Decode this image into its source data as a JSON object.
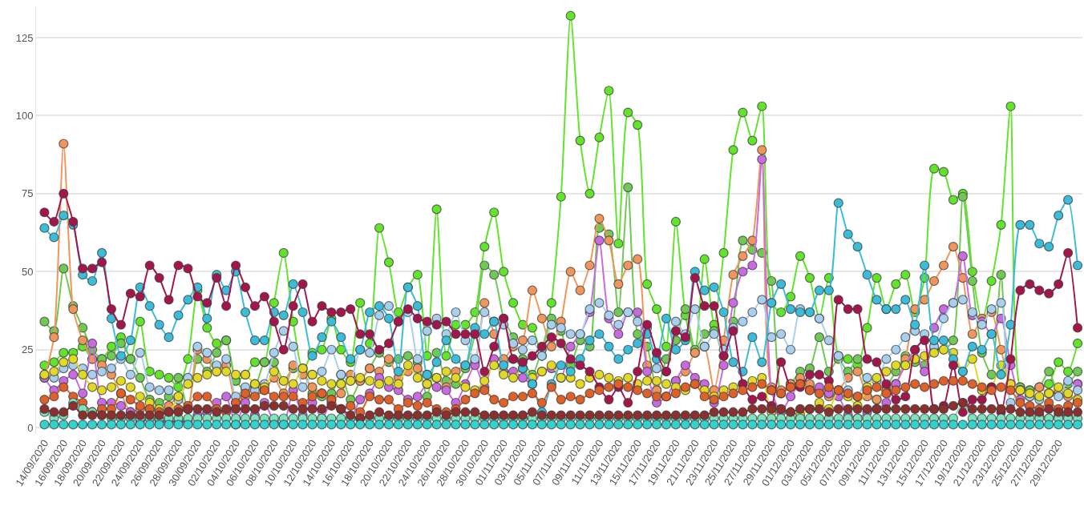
{
  "chart_data": {
    "type": "line",
    "marker": "circle",
    "line_style": "solid",
    "grid": "y",
    "x": [
      "2020-09-14",
      "2020-09-15",
      "2020-09-16",
      "2020-09-17",
      "2020-09-18",
      "2020-09-19",
      "2020-09-20",
      "2020-09-21",
      "2020-09-22",
      "2020-09-23",
      "2020-09-24",
      "2020-09-25",
      "2020-09-26",
      "2020-09-27",
      "2020-09-28",
      "2020-09-29",
      "2020-09-30",
      "2020-10-01",
      "2020-10-02",
      "2020-10-03",
      "2020-10-04",
      "2020-10-05",
      "2020-10-06",
      "2020-10-07",
      "2020-10-08",
      "2020-10-09",
      "2020-10-10",
      "2020-10-11",
      "2020-10-12",
      "2020-10-13",
      "2020-10-14",
      "2020-10-15",
      "2020-10-16",
      "2020-10-17",
      "2020-10-18",
      "2020-10-19",
      "2020-10-20",
      "2020-10-21",
      "2020-10-22",
      "2020-10-23",
      "2020-10-24",
      "2020-10-25",
      "2020-10-26",
      "2020-10-27",
      "2020-10-28",
      "2020-10-29",
      "2020-10-30",
      "2020-10-31",
      "2020-11-01",
      "2020-11-02",
      "2020-11-03",
      "2020-11-04",
      "2020-11-05",
      "2020-11-06",
      "2020-11-07",
      "2020-11-08",
      "2020-11-09",
      "2020-11-10",
      "2020-11-11",
      "2020-11-12",
      "2020-11-13",
      "2020-11-14",
      "2020-11-15",
      "2020-11-16",
      "2020-11-17",
      "2020-11-18",
      "2020-11-19",
      "2020-11-20",
      "2020-11-21",
      "2020-11-22",
      "2020-11-23",
      "2020-11-24",
      "2020-11-25",
      "2020-11-26",
      "2020-11-27",
      "2020-11-28",
      "2020-11-29",
      "2020-11-30",
      "2020-12-01",
      "2020-12-02",
      "2020-12-03",
      "2020-12-04",
      "2020-12-05",
      "2020-12-06",
      "2020-12-07",
      "2020-12-08",
      "2020-12-09",
      "2020-12-10",
      "2020-12-11",
      "2020-12-12",
      "2020-12-13",
      "2020-12-14",
      "2020-12-15",
      "2020-12-16",
      "2020-12-17",
      "2020-12-18",
      "2020-12-19",
      "2020-12-20",
      "2020-12-21",
      "2020-12-22",
      "2020-12-23",
      "2020-12-24",
      "2020-12-25",
      "2020-12-26",
      "2020-12-27",
      "2020-12-28",
      "2020-12-29",
      "2020-12-30",
      "2020-12-31"
    ],
    "xlim": [
      "2020-09-13T03:00",
      "2020-12-31T12:00"
    ],
    "xticks": [
      {
        "value": "2020-09-14",
        "label": "14/09/2020"
      },
      {
        "value": "2020-09-16",
        "label": "16/09/2020"
      },
      {
        "value": "2020-09-18",
        "label": "18/09/2020"
      },
      {
        "value": "2020-09-20",
        "label": "20/09/2020"
      },
      {
        "value": "2020-09-22",
        "label": "22/09/2020"
      },
      {
        "value": "2020-09-24",
        "label": "24/09/2020"
      },
      {
        "value": "2020-09-26",
        "label": "26/09/2020"
      },
      {
        "value": "2020-09-28",
        "label": "28/09/2020"
      },
      {
        "value": "2020-09-30",
        "label": "30/09/2020"
      },
      {
        "value": "2020-10-02",
        "label": "02/10/2020"
      },
      {
        "value": "2020-10-04",
        "label": "04/10/2020"
      },
      {
        "value": "2020-10-06",
        "label": "06/10/2020"
      },
      {
        "value": "2020-10-08",
        "label": "08/10/2020"
      },
      {
        "value": "2020-10-10",
        "label": "10/10/2020"
      },
      {
        "value": "2020-10-12",
        "label": "12/10/2020"
      },
      {
        "value": "2020-10-14",
        "label": "14/10/2020"
      },
      {
        "value": "2020-10-16",
        "label": "16/10/2020"
      },
      {
        "value": "2020-10-18",
        "label": "18/10/2020"
      },
      {
        "value": "2020-10-20",
        "label": "20/10/2020"
      },
      {
        "value": "2020-10-22",
        "label": "22/10/2020"
      },
      {
        "value": "2020-10-24",
        "label": "24/10/2020"
      },
      {
        "value": "2020-10-26",
        "label": "26/10/2020"
      },
      {
        "value": "2020-10-28",
        "label": "28/10/2020"
      },
      {
        "value": "2020-10-30",
        "label": "30/10/2020"
      },
      {
        "value": "2020-11-01",
        "label": "01/11/2020"
      },
      {
        "value": "2020-11-03",
        "label": "03/11/2020"
      },
      {
        "value": "2020-11-05",
        "label": "05/11/2020"
      },
      {
        "value": "2020-11-07",
        "label": "07/11/2020"
      },
      {
        "value": "2020-11-09",
        "label": "09/11/2020"
      },
      {
        "value": "2020-11-11",
        "label": "11/11/2020"
      },
      {
        "value": "2020-11-13",
        "label": "13/11/2020"
      },
      {
        "value": "2020-11-15",
        "label": "15/11/2020"
      },
      {
        "value": "2020-11-17",
        "label": "17/11/2020"
      },
      {
        "value": "2020-11-19",
        "label": "19/11/2020"
      },
      {
        "value": "2020-11-21",
        "label": "21/11/2020"
      },
      {
        "value": "2020-11-23",
        "label": "23/11/2020"
      },
      {
        "value": "2020-11-25",
        "label": "25/11/2020"
      },
      {
        "value": "2020-11-27",
        "label": "27/11/2020"
      },
      {
        "value": "2020-11-29",
        "label": "29/11/2020"
      },
      {
        "value": "2020-12-01",
        "label": "01/12/2020"
      },
      {
        "value": "2020-12-03",
        "label": "03/12/2020"
      },
      {
        "value": "2020-12-05",
        "label": "05/12/2020"
      },
      {
        "value": "2020-12-07",
        "label": "07/12/2020"
      },
      {
        "value": "2020-12-09",
        "label": "09/12/2020"
      },
      {
        "value": "2020-12-11",
        "label": "11/12/2020"
      },
      {
        "value": "2020-12-13",
        "label": "13/12/2020"
      },
      {
        "value": "2020-12-15",
        "label": "15/12/2020"
      },
      {
        "value": "2020-12-17",
        "label": "17/12/2020"
      },
      {
        "value": "2020-12-19",
        "label": "19/12/2020"
      },
      {
        "value": "2020-12-21",
        "label": "21/12/2020"
      },
      {
        "value": "2020-12-23",
        "label": "23/12/2020"
      },
      {
        "value": "2020-12-25",
        "label": "25/12/2020"
      },
      {
        "value": "2020-12-27",
        "label": "27/12/2020"
      },
      {
        "value": "2020-12-29",
        "label": "29/12/2020"
      }
    ],
    "ylim": [
      -2,
      135
    ],
    "yticks": [
      0,
      25,
      50,
      75,
      100,
      125
    ],
    "series": [
      {
        "color": "#62e32c",
        "values": [
          20,
          21,
          24,
          24,
          26,
          22,
          22,
          26,
          29,
          22,
          34,
          18,
          17,
          16,
          13,
          22,
          44,
          32,
          27,
          28,
          15,
          17,
          21,
          21,
          40,
          56,
          34,
          18,
          24,
          25,
          35,
          25,
          21,
          40,
          27,
          64,
          53,
          37,
          45,
          49,
          23,
          70,
          23,
          33,
          33,
          37,
          58,
          69,
          50,
          40,
          33,
          32,
          23,
          40,
          74,
          132,
          92,
          75,
          93,
          108,
          59,
          101,
          97,
          46,
          38,
          26,
          66,
          36,
          24,
          54,
          33,
          56,
          89,
          101,
          92,
          103,
          40,
          37,
          42,
          55,
          48,
          35,
          48,
          23,
          22,
          20,
          32,
          48,
          38,
          46,
          49,
          37,
          48,
          83,
          82,
          73,
          75,
          50,
          34,
          47,
          65,
          103,
          13,
          12,
          13,
          14,
          21,
          18,
          27
        ]
      },
      {
        "color": "#70c855",
        "values": [
          34,
          31,
          51,
          39,
          32,
          25,
          22,
          23,
          27,
          22,
          16,
          9,
          8,
          10,
          16,
          6,
          22,
          18,
          24,
          28,
          15,
          12,
          13,
          21,
          21,
          15,
          19,
          19,
          11,
          10,
          11,
          17,
          9,
          15,
          19,
          24,
          21,
          22,
          23,
          21,
          10,
          24,
          15,
          14,
          19,
          30,
          52,
          49,
          35,
          29,
          22,
          17,
          25,
          35,
          31,
          20,
          28,
          26,
          64,
          62,
          37,
          77,
          30,
          26,
          12,
          22,
          28,
          38,
          25,
          30,
          31,
          23,
          34,
          60,
          57,
          56,
          47,
          11,
          14,
          18,
          19,
          29,
          18,
          22,
          18,
          22,
          12,
          9,
          13,
          18,
          23,
          21,
          20,
          25,
          25,
          28,
          74,
          47,
          24,
          17,
          49,
          13,
          13,
          12,
          13,
          18,
          11,
          14,
          18
        ]
      },
      {
        "color": "#f0965c",
        "values": [
          16,
          29,
          91,
          38,
          28,
          22,
          20,
          17,
          11,
          5,
          6,
          6,
          5,
          7,
          10,
          6,
          25,
          22,
          18,
          20,
          8,
          10,
          14,
          12,
          16,
          11,
          20,
          17,
          13,
          11,
          9,
          11,
          17,
          15,
          19,
          18,
          22,
          16,
          18,
          19,
          17,
          16,
          13,
          18,
          20,
          21,
          40,
          30,
          22,
          26,
          28,
          44,
          35,
          26,
          34,
          50,
          44,
          52,
          67,
          60,
          46,
          52,
          54,
          20,
          12,
          10,
          15,
          18,
          24,
          26,
          12,
          28,
          49,
          55,
          60,
          89,
          13,
          12,
          14,
          16,
          14,
          12,
          10,
          12,
          16,
          18,
          10,
          9,
          12,
          14,
          22,
          38,
          41,
          47,
          52,
          58,
          48,
          30,
          35,
          37,
          25,
          14,
          12,
          10,
          13,
          11,
          12,
          10,
          14
        ]
      },
      {
        "color": "#c86ae0",
        "values": [
          16,
          12,
          15,
          17,
          11,
          27,
          8,
          8,
          7,
          5,
          2,
          3,
          2,
          2,
          2,
          2,
          4,
          5,
          8,
          10,
          1,
          8,
          4,
          8,
          2,
          1,
          12,
          4,
          8,
          3,
          8,
          6,
          3,
          9,
          11,
          16,
          13,
          12,
          9,
          10,
          14,
          13,
          12,
          8,
          14,
          20,
          13,
          22,
          18,
          18,
          16,
          14,
          18,
          19,
          16,
          26,
          30,
          37,
          60,
          35,
          30,
          37,
          37,
          18,
          8,
          10,
          15,
          20,
          16,
          14,
          8,
          20,
          40,
          50,
          52,
          86,
          12,
          5,
          10,
          14,
          12,
          13,
          11,
          10,
          4,
          3,
          5,
          6,
          8,
          14,
          20,
          25,
          18,
          32,
          38,
          40,
          55,
          36,
          34,
          30,
          35,
          20,
          9,
          5,
          4,
          3,
          4,
          4,
          14
        ]
      },
      {
        "color": "#a8cfee",
        "values": [
          17,
          16,
          19,
          20,
          19,
          17,
          18,
          19,
          22,
          17,
          24,
          13,
          12,
          12,
          9,
          16,
          26,
          24,
          20,
          22,
          10,
          13,
          12,
          14,
          24,
          31,
          26,
          13,
          17,
          18,
          25,
          17,
          15,
          25,
          24,
          36,
          39,
          34,
          37,
          22,
          31,
          35,
          30,
          37,
          28,
          22,
          37,
          34,
          33,
          27,
          25,
          28,
          23,
          33,
          32,
          30,
          30,
          38,
          40,
          36,
          33,
          37,
          34,
          32,
          19,
          18,
          34,
          30,
          38,
          26,
          30,
          25,
          32,
          34,
          37,
          41,
          29,
          30,
          25,
          38,
          37,
          35,
          28,
          23,
          12,
          10,
          16,
          15,
          22,
          25,
          29,
          31,
          30,
          26,
          35,
          40,
          41,
          37,
          33,
          38,
          40,
          8,
          12,
          10,
          9,
          11,
          10,
          15,
          12
        ]
      },
      {
        "color": "#e1d828",
        "values": [
          17,
          18,
          21,
          22,
          17,
          13,
          12,
          13,
          15,
          13,
          10,
          8,
          6,
          5,
          10,
          14,
          16,
          17,
          18,
          18,
          17,
          17,
          14,
          13,
          18,
          15,
          14,
          19,
          17,
          15,
          14,
          14,
          15,
          16,
          15,
          14,
          15,
          14,
          20,
          16,
          14,
          16,
          18,
          16,
          13,
          12,
          15,
          20,
          17,
          16,
          19,
          16,
          18,
          20,
          16,
          16,
          14,
          16,
          17,
          16,
          15,
          16,
          14,
          15,
          15,
          14,
          13,
          12,
          14,
          12,
          10,
          12,
          13,
          14,
          15,
          16,
          5,
          6,
          5,
          4,
          6,
          8,
          6,
          12,
          10,
          7,
          13,
          16,
          18,
          20,
          20,
          22,
          23,
          24,
          25,
          24,
          18,
          22,
          12,
          13,
          20,
          14,
          12,
          11,
          10,
          11,
          13,
          11,
          9
        ]
      },
      {
        "color": "#3bbcd8",
        "values": [
          64,
          61,
          68,
          65,
          49,
          47,
          56,
          35,
          23,
          28,
          45,
          39,
          33,
          29,
          36,
          41,
          45,
          35,
          49,
          44,
          50,
          37,
          28,
          28,
          37,
          36,
          46,
          37,
          23,
          29,
          34,
          29,
          22,
          25,
          37,
          39,
          35,
          18,
          45,
          39,
          17,
          21,
          28,
          22,
          20,
          32,
          30,
          34,
          20,
          22,
          19,
          14,
          5,
          14,
          20,
          18,
          22,
          28,
          30,
          26,
          22,
          25,
          27,
          30,
          22,
          35,
          25,
          28,
          50,
          44,
          45,
          37,
          21,
          18,
          29,
          21,
          40,
          46,
          38,
          37,
          37,
          44,
          44,
          72,
          62,
          58,
          49,
          41,
          38,
          38,
          41,
          33,
          52,
          28,
          28,
          22,
          18,
          26,
          25,
          30,
          17,
          33,
          65,
          65,
          59,
          58,
          68,
          73,
          52
        ]
      },
      {
        "color": "#a3154b",
        "values": [
          69,
          66,
          75,
          66,
          51,
          51,
          53,
          38,
          33,
          43,
          42,
          52,
          48,
          41,
          52,
          51,
          42,
          40,
          48,
          39,
          52,
          45,
          39,
          42,
          34,
          25,
          39,
          46,
          34,
          39,
          37,
          37,
          38,
          30,
          30,
          25,
          27,
          34,
          38,
          35,
          34,
          33,
          34,
          30,
          30,
          30,
          18,
          26,
          35,
          22,
          21,
          23,
          26,
          29,
          27,
          22,
          20,
          18,
          13,
          9,
          13,
          8,
          18,
          33,
          24,
          18,
          31,
          29,
          48,
          39,
          39,
          23,
          31,
          14,
          9,
          10,
          7,
          21,
          13,
          13,
          17,
          17,
          15,
          41,
          38,
          38,
          22,
          21,
          14,
          9,
          10,
          25,
          28,
          6,
          7,
          20,
          5,
          9,
          9,
          13,
          5,
          22,
          44,
          46,
          44,
          43,
          46,
          56,
          32
        ]
      },
      {
        "color": "#e0602a",
        "values": [
          9,
          10,
          13,
          10,
          8,
          5,
          6,
          6,
          11,
          9,
          7,
          6,
          5,
          5,
          6,
          7,
          10,
          10,
          6,
          5,
          8,
          11,
          10,
          12,
          10,
          10,
          10,
          8,
          10,
          11,
          9,
          6,
          7,
          5,
          10,
          9,
          9,
          6,
          8,
          7,
          8,
          6,
          5,
          6,
          9,
          11,
          12,
          9,
          8,
          10,
          10,
          11,
          8,
          13,
          9,
          10,
          9,
          11,
          12,
          13,
          14,
          13,
          12,
          11,
          10,
          10,
          11,
          13,
          14,
          10,
          9,
          10,
          11,
          12,
          13,
          14,
          12,
          11,
          13,
          14,
          12,
          11,
          13,
          12,
          11,
          10,
          12,
          13,
          11,
          12,
          13,
          14,
          13,
          14,
          15,
          15,
          15,
          14,
          13,
          12,
          13,
          12,
          8,
          7,
          6,
          8,
          6,
          7,
          8
        ]
      },
      {
        "color": "#7ee3bc",
        "values": [
          5,
          3,
          4,
          8,
          6,
          5,
          4,
          3,
          3,
          3,
          3,
          3,
          3,
          3,
          3,
          3,
          3,
          3,
          3,
          3,
          3,
          3,
          3,
          3,
          3,
          3,
          3,
          3,
          3,
          3,
          3,
          3,
          3,
          3,
          3,
          3,
          3,
          3,
          3,
          3,
          3,
          3,
          3,
          3,
          3,
          3,
          3,
          3,
          3,
          3,
          3,
          3,
          3,
          3,
          3,
          3,
          3,
          3,
          3,
          3,
          3,
          3,
          3,
          3,
          3,
          3,
          3,
          3,
          3,
          3,
          3,
          3,
          3,
          3,
          3,
          3,
          3,
          3,
          3,
          3,
          3,
          3,
          3,
          3,
          3,
          3,
          3,
          3,
          3,
          3,
          3,
          3,
          3,
          3,
          3,
          3,
          8,
          3,
          3,
          3,
          3,
          3,
          3,
          3,
          3,
          3,
          3,
          3,
          3
        ]
      },
      {
        "color": "#8b2f2f",
        "values": [
          6,
          5,
          5,
          7,
          4,
          4,
          4,
          4,
          4,
          4,
          4,
          4,
          4,
          5,
          5,
          6,
          6,
          6,
          5,
          6,
          6,
          6,
          6,
          7,
          7,
          7,
          6,
          6,
          6,
          6,
          7,
          6,
          4,
          3,
          4,
          5,
          4,
          4,
          4,
          4,
          4,
          5,
          4,
          5,
          5,
          5,
          4,
          4,
          4,
          4,
          4,
          5,
          4,
          4,
          4,
          4,
          4,
          4,
          4,
          4,
          4,
          4,
          4,
          4,
          4,
          4,
          4,
          4,
          4,
          4,
          5,
          5,
          5,
          5,
          6,
          6,
          6,
          6,
          5,
          6,
          6,
          6,
          5,
          6,
          6,
          6,
          6,
          6,
          6,
          6,
          6,
          6,
          6,
          6,
          6,
          7,
          8,
          6,
          6,
          6,
          6,
          6,
          5,
          5,
          5,
          6,
          5,
          5,
          5
        ]
      },
      {
        "color": "#33d1cf",
        "values": [
          1,
          1,
          1,
          1,
          1,
          1,
          1,
          1,
          1,
          1,
          1,
          1,
          1,
          1,
          1,
          1,
          1,
          1,
          1,
          1,
          1,
          1,
          1,
          1,
          1,
          1,
          1,
          1,
          1,
          1,
          1,
          1,
          1,
          1,
          1,
          1,
          1,
          1,
          1,
          1,
          1,
          1,
          1,
          1,
          1,
          1,
          1,
          1,
          1,
          1,
          1,
          1,
          1,
          1,
          1,
          1,
          1,
          1,
          1,
          1,
          1,
          1,
          1,
          1,
          1,
          1,
          1,
          1,
          1,
          1,
          1,
          1,
          1,
          1,
          1,
          1,
          1,
          1,
          1,
          1,
          1,
          1,
          1,
          1,
          1,
          1,
          1,
          1,
          1,
          1,
          1,
          1,
          1,
          1,
          1,
          1,
          1,
          1,
          1,
          1,
          1,
          1,
          1,
          1,
          1,
          1,
          1,
          1,
          1
        ]
      }
    ]
  }
}
